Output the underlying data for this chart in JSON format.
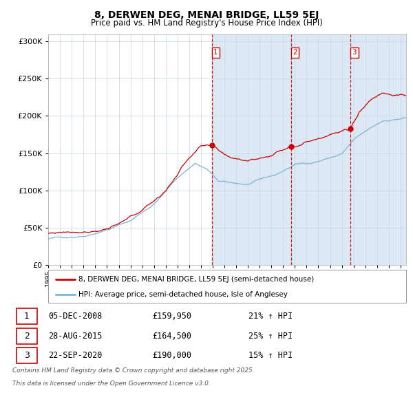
{
  "title": "8, DERWEN DEG, MENAI BRIDGE, LL59 5EJ",
  "subtitle": "Price paid vs. HM Land Registry's House Price Index (HPI)",
  "legend_label_red": "8, DERWEN DEG, MENAI BRIDGE, LL59 5EJ (semi-detached house)",
  "legend_label_blue": "HPI: Average price, semi-detached house, Isle of Anglesey",
  "transactions": [
    {
      "num": 1,
      "date": "05-DEC-2008",
      "price": 159950,
      "pct": "21% ↑ HPI"
    },
    {
      "num": 2,
      "date": "28-AUG-2015",
      "price": 164500,
      "pct": "25% ↑ HPI"
    },
    {
      "num": 3,
      "date": "22-SEP-2020",
      "price": 190000,
      "pct": "15% ↑ HPI"
    }
  ],
  "transaction_dates_decimal": [
    2008.92,
    2015.66,
    2020.72
  ],
  "footnote_line1": "Contains HM Land Registry data © Crown copyright and database right 2025.",
  "footnote_line2": "This data is licensed under the Open Government Licence v3.0.",
  "start_year": 1995.0,
  "end_year": 2025.5,
  "ylim_max": 310000,
  "background_color": "#ffffff",
  "plot_bg_left": "#ffffff",
  "plot_bg_right": "#dce9f5",
  "grid_color": "#c8d4e0",
  "red_color": "#cc0000",
  "blue_color": "#7ab4d8",
  "vline_color": "#cc0000"
}
